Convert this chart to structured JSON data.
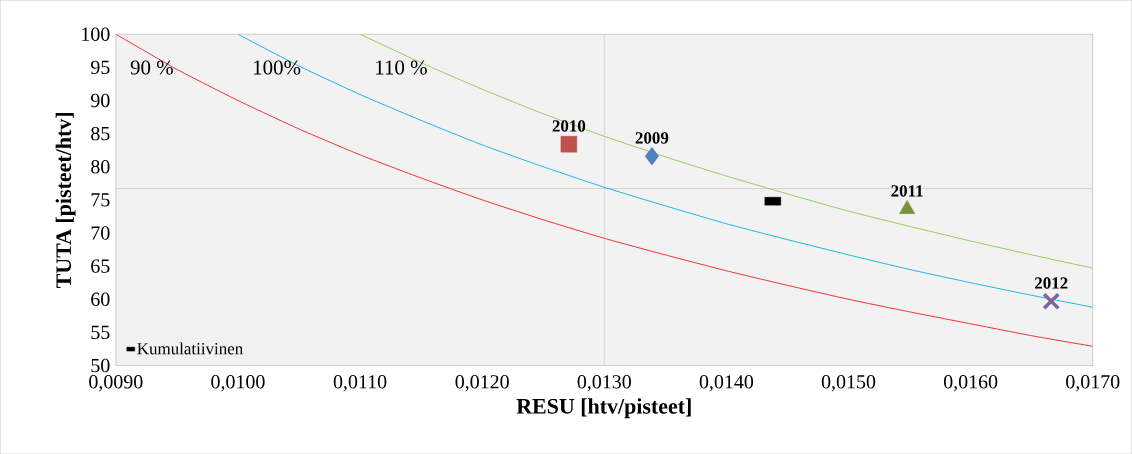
{
  "chart_data": {
    "type": "scatter",
    "xlabel": "RESU [htv/pisteet]",
    "ylabel": "TUTA [pisteet/htv]",
    "xlim": [
      0.009,
      0.017
    ],
    "ylim": [
      50,
      100
    ],
    "xticks": [
      {
        "value": 0.009,
        "label": "0,0090"
      },
      {
        "value": 0.01,
        "label": "0,0100"
      },
      {
        "value": 0.011,
        "label": "0,0110"
      },
      {
        "value": 0.012,
        "label": "0,0120"
      },
      {
        "value": 0.013,
        "label": "0,0130"
      },
      {
        "value": 0.014,
        "label": "0,0140"
      },
      {
        "value": 0.015,
        "label": "0,0150"
      },
      {
        "value": 0.016,
        "label": "0,0160"
      },
      {
        "value": 0.017,
        "label": "0,0170"
      }
    ],
    "yticks": [
      50,
      55,
      60,
      65,
      70,
      75,
      80,
      85,
      90,
      95,
      100
    ],
    "grid": false,
    "legend": "bottom left",
    "ref_lines": [
      {
        "axis": "x",
        "value": 0.013,
        "color": "#808080"
      },
      {
        "axis": "y",
        "value": 76.7,
        "color": "#808080"
      }
    ],
    "series": [
      {
        "name": "90 %",
        "type": "line",
        "color": "#ee3333",
        "marker": "none",
        "x": [
          0.009,
          0.0095,
          0.01,
          0.0105,
          0.011,
          0.0115,
          0.012,
          0.0125,
          0.013,
          0.0135,
          0.014,
          0.0145,
          0.015,
          0.0155,
          0.016,
          0.0165,
          0.017
        ],
        "values": [
          100,
          94.7,
          90,
          85.7,
          81.8,
          78.3,
          75,
          72,
          69.2,
          66.7,
          64.3,
          62.1,
          60,
          58.1,
          56.3,
          54.5,
          52.9
        ]
      },
      {
        "name": "100%",
        "type": "line",
        "color": "#1fb4e8",
        "marker": "none",
        "x": [
          0.01,
          0.0105,
          0.011,
          0.0115,
          0.012,
          0.0125,
          0.013,
          0.0135,
          0.014,
          0.0145,
          0.015,
          0.0155,
          0.016,
          0.0165,
          0.017
        ],
        "values": [
          100,
          95.2,
          90.9,
          87.0,
          83.3,
          80,
          76.9,
          74.1,
          71.4,
          69.0,
          66.7,
          64.5,
          62.5,
          60.6,
          58.8
        ]
      },
      {
        "name": "110 %",
        "type": "line",
        "color": "#9bcb5a",
        "marker": "none",
        "x": [
          0.011,
          0.0115,
          0.012,
          0.0125,
          0.013,
          0.0135,
          0.014,
          0.0145,
          0.015,
          0.0155,
          0.016,
          0.0165,
          0.017
        ],
        "values": [
          100,
          95.7,
          91.7,
          88,
          84.6,
          81.5,
          78.6,
          75.9,
          73.3,
          71.0,
          68.8,
          66.7,
          64.7
        ]
      },
      {
        "color": "#c0504d",
        "marker": "square",
        "x": [
          0.01271
        ],
        "values": [
          83.4
        ]
      },
      {
        "color": "#4f81bd",
        "marker": "diamond",
        "x": [
          0.01339
        ],
        "values": [
          81.6
        ]
      },
      {
        "name": "Kumulatiivinen",
        "color": "#000000",
        "marker": "square",
        "x": [
          0.01438
        ],
        "values": [
          74.8
        ]
      },
      {
        "color": "#77933c",
        "marker": "triangle",
        "x": [
          0.01548
        ],
        "values": [
          73.6
        ]
      },
      {
        "color": "#8064a2",
        "marker": "cross",
        "x": [
          0.01666
        ],
        "values": [
          59.7
        ]
      }
    ],
    "annotations": [
      {
        "text": "2010",
        "x": 0.01271,
        "y": 83.4
      },
      {
        "text": "2009",
        "x": 0.01339,
        "y": 81.6
      },
      {
        "text": "2011",
        "x": 0.01548,
        "y": 73.6
      },
      {
        "text": "2012",
        "x": 0.01666,
        "y": 59.7
      }
    ]
  }
}
